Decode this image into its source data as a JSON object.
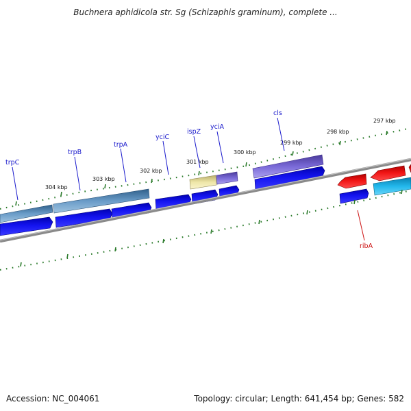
{
  "title": "Buchnera aphidicola str. Sg (Schizaphis graminum), complete ...",
  "footer": {
    "accession": "Accession: NC_004061",
    "summary": "Topology: circular; Length: 641,454 bp; Genes: 582"
  },
  "colors": {
    "backbone": "#888888",
    "tick": "#2a7a2a",
    "gene_label_plus": "#1a1acc",
    "gene_label_minus": "#cc1111",
    "cds_blue": "#1010e0",
    "cds_red": "#ee1111",
    "steelblue_feature": "#4e84b4",
    "purple_feature": "#6a5acd",
    "yellow_feature": "#eee4a0",
    "cyan_feature": "#1ab0e0"
  },
  "map": {
    "scale_labels": [
      "304 kbp",
      "303 kbp",
      "302 kbp",
      "301 kbp",
      "300 kbp",
      "299 kbp",
      "298 kbp",
      "297 kbp"
    ],
    "gene_labels": [
      {
        "name": "trpC",
        "strand": "plus"
      },
      {
        "name": "trpB",
        "strand": "plus"
      },
      {
        "name": "trpA",
        "strand": "plus"
      },
      {
        "name": "yciC",
        "strand": "plus"
      },
      {
        "name": "ispZ",
        "strand": "plus"
      },
      {
        "name": "yciA",
        "strand": "plus"
      },
      {
        "name": "cls",
        "strand": "plus"
      },
      {
        "name": "ribA",
        "strand": "minus"
      }
    ]
  }
}
